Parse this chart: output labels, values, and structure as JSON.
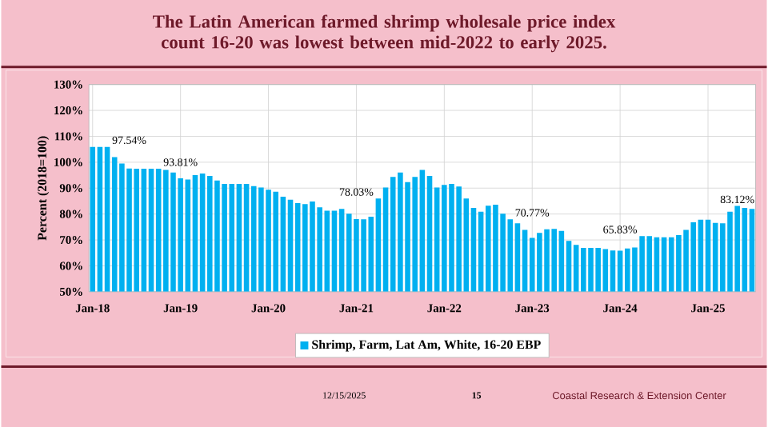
{
  "chart_data": {
    "type": "bar",
    "title": "The Latin American farmed shrimp wholesale price index count 16-20 was lowest between mid-2022 to early 2025.",
    "ylabel": "Percent (2018=100)",
    "categories": [
      "Jan-18",
      null,
      null,
      null,
      null,
      null,
      null,
      null,
      null,
      null,
      null,
      null,
      "Jan-19",
      null,
      null,
      null,
      null,
      null,
      null,
      null,
      null,
      null,
      null,
      null,
      "Jan-20",
      null,
      null,
      null,
      null,
      null,
      null,
      null,
      null,
      null,
      null,
      null,
      "Jan-21",
      null,
      null,
      null,
      null,
      null,
      null,
      null,
      null,
      null,
      null,
      null,
      "Jan-22",
      null,
      null,
      null,
      null,
      null,
      null,
      null,
      null,
      null,
      null,
      null,
      "Jan-23",
      null,
      null,
      null,
      null,
      null,
      null,
      null,
      null,
      null,
      null,
      null,
      "Jan-24",
      null,
      null,
      null,
      null,
      null,
      null,
      null,
      null,
      null,
      null,
      null,
      "Jan-25",
      null,
      null,
      null,
      null,
      null,
      null
    ],
    "series": [
      {
        "name": "Shrimp, Farm, Lat Am, White, 16-20 EBP",
        "color": "#00b0f0",
        "values": [
          106,
          106,
          106,
          102,
          99.5,
          97.54,
          97.5,
          97.5,
          97.5,
          97.5,
          97,
          96,
          93.81,
          93.3,
          95,
          95.6,
          94.7,
          92.9,
          91.6,
          91.6,
          91.6,
          91.6,
          90.8,
          90.2,
          89.4,
          88.6,
          86.7,
          85.5,
          84.2,
          83.8,
          84.8,
          82.6,
          81.3,
          81.3,
          82,
          80.1,
          78.03,
          78,
          79,
          86,
          90.2,
          94.3,
          96,
          92.3,
          94.3,
          97,
          94.7,
          90.2,
          91.2,
          91.6,
          90.6,
          86,
          82.4,
          80.9,
          83.2,
          83.6,
          80.1,
          78,
          76.4,
          73.9,
          70.77,
          72.7,
          74.1,
          74.3,
          73.5,
          69.6,
          68.1,
          66.9,
          66.9,
          66.9,
          66.5,
          65.9,
          65.83,
          66.7,
          67.1,
          71.5,
          71.5,
          71,
          71,
          71,
          71.9,
          73.9,
          76.8,
          77.8,
          77.8,
          76.6,
          76.4,
          80.9,
          83.12,
          82.4,
          82
        ],
        "value_labels": [
          null,
          null,
          null,
          null,
          null,
          "97.54%",
          null,
          null,
          null,
          null,
          null,
          null,
          "93.81%",
          null,
          null,
          null,
          null,
          null,
          null,
          null,
          null,
          null,
          null,
          null,
          null,
          null,
          null,
          null,
          null,
          null,
          null,
          null,
          null,
          null,
          null,
          null,
          "78.03%",
          null,
          null,
          null,
          null,
          null,
          null,
          null,
          null,
          null,
          null,
          null,
          null,
          null,
          null,
          null,
          null,
          null,
          null,
          null,
          null,
          null,
          null,
          null,
          "70.77%",
          null,
          null,
          null,
          null,
          null,
          null,
          null,
          null,
          null,
          null,
          null,
          "65.83%",
          null,
          null,
          null,
          null,
          null,
          null,
          null,
          null,
          null,
          null,
          null,
          null,
          null,
          null,
          null,
          "83.12%",
          null,
          null
        ]
      }
    ],
    "ylim": [
      50,
      130
    ],
    "yticks": [
      {
        "value": 50,
        "label": "50%"
      },
      {
        "value": 60,
        "label": "60%"
      },
      {
        "value": 70,
        "label": "70%"
      },
      {
        "value": 80,
        "label": "80%"
      },
      {
        "value": 90,
        "label": "90%"
      },
      {
        "value": 100,
        "label": "100%"
      },
      {
        "value": 110,
        "label": "110%"
      },
      {
        "value": 120,
        "label": "120%"
      },
      {
        "value": 130,
        "label": "130%"
      }
    ],
    "grid": true,
    "legend": "bottom",
    "annotations": [
      "12/15/2025",
      "15",
      "Coastal Research & Extension Center"
    ]
  }
}
